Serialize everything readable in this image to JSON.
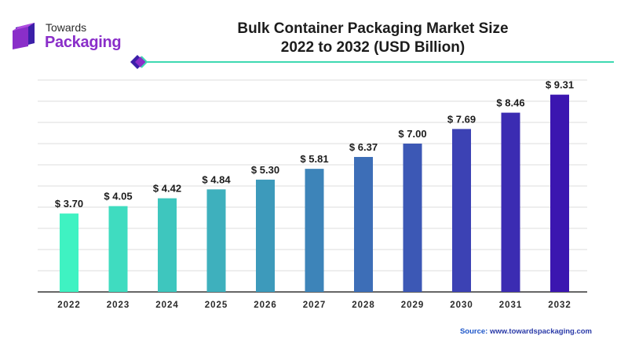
{
  "logo": {
    "line1": "Towards",
    "line2": "Packaging"
  },
  "title_line1": "Bulk Container Packaging Market Size",
  "title_line2": "2022 to 2032 (USD Billion)",
  "source": {
    "label": "Source:",
    "url": "www.towardspackaging.com"
  },
  "colors": {
    "accent_line": "#3ed9b1",
    "logo_purple": "#8a2ec9",
    "bar_start": "#3ff2c2",
    "bar_end": "#3b16b0"
  },
  "chart_data": {
    "type": "bar",
    "title": "Bulk Container Packaging Market Size 2022 to 2032 (USD Billion)",
    "categories": [
      "2022",
      "2023",
      "2024",
      "2025",
      "2026",
      "2027",
      "2028",
      "2029",
      "2030",
      "2031",
      "2032"
    ],
    "values": [
      3.7,
      4.05,
      4.42,
      4.84,
      5.3,
      5.81,
      6.37,
      7.0,
      7.69,
      8.46,
      9.31
    ],
    "value_labels": [
      "$ 3.70",
      "$ 4.05",
      "$ 4.42",
      "$ 4.84",
      "$ 5.30",
      "$ 5.81",
      "$ 6.37",
      "$ 7.00",
      "$ 7.69",
      "$ 8.46",
      "$ 9.31"
    ],
    "ylim": [
      0,
      10
    ],
    "grid": true,
    "legend": "none"
  }
}
